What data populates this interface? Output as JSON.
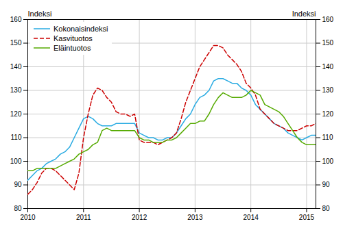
{
  "chart_data": {
    "type": "line",
    "ylabel": "Indeksi",
    "y2label": "Indeksi",
    "x": [
      2010,
      2010.083333,
      2010.166667,
      2010.25,
      2010.333333,
      2010.416667,
      2010.5,
      2010.583333,
      2010.666667,
      2010.75,
      2010.833333,
      2010.916667,
      2011,
      2011.083333,
      2011.166667,
      2011.25,
      2011.333333,
      2011.416667,
      2011.5,
      2011.583333,
      2011.666667,
      2011.75,
      2011.833333,
      2011.916667,
      2012,
      2012.083333,
      2012.166667,
      2012.25,
      2012.333333,
      2012.416667,
      2012.5,
      2012.583333,
      2012.666667,
      2012.75,
      2012.833333,
      2012.916667,
      2013,
      2013.083333,
      2013.166667,
      2013.25,
      2013.333333,
      2013.416667,
      2013.5,
      2013.583333,
      2013.666667,
      2013.75,
      2013.833333,
      2013.916667,
      2014,
      2014.083333,
      2014.166667,
      2014.25,
      2014.333333,
      2014.416667,
      2014.5,
      2014.583333,
      2014.666667,
      2014.75,
      2014.833333,
      2014.916667,
      2015,
      2015.083333,
      2015.166667
    ],
    "xlim": [
      2010,
      2015.166667
    ],
    "xticks": [
      2010,
      2011,
      2012,
      2013,
      2014,
      2015
    ],
    "ylim": [
      80,
      160
    ],
    "yticks": [
      80,
      90,
      100,
      110,
      120,
      130,
      140,
      150,
      160
    ],
    "y2lim": [
      80,
      160
    ],
    "y2ticks": [
      80,
      90,
      100,
      110,
      120,
      130,
      140,
      150,
      160
    ],
    "grid": true,
    "legend": "upper left",
    "series": [
      {
        "name": "Kokonaisindeksi",
        "color": "#29ABE2",
        "line_style": "solid",
        "values": [
          92,
          94,
          96,
          97,
          99,
          100,
          101,
          103,
          104,
          106,
          110,
          114,
          118,
          119,
          118,
          116,
          115,
          115,
          115,
          116,
          116,
          116,
          116,
          116,
          112,
          111,
          110,
          110,
          109,
          109,
          110,
          110,
          112,
          115,
          118,
          120,
          124,
          127,
          128,
          130,
          134,
          135,
          135,
          134,
          133,
          133,
          131,
          130,
          128,
          124,
          122,
          120,
          118,
          116,
          115,
          114,
          112,
          111,
          110,
          109,
          110,
          111,
          111
        ]
      },
      {
        "name": "Kasvituotos",
        "color": "#CC0000",
        "line_style": "dashed",
        "values": [
          86,
          88,
          91,
          95,
          97,
          97,
          96,
          94,
          92,
          90,
          88,
          95,
          110,
          120,
          128,
          131,
          130,
          127,
          125,
          121,
          120,
          120,
          119,
          120,
          109,
          108,
          108,
          108,
          107,
          108,
          109,
          110,
          112,
          118,
          125,
          130,
          135,
          140,
          143,
          146,
          149,
          149,
          148,
          145,
          143,
          141,
          138,
          133,
          131,
          128,
          122,
          120,
          118,
          116,
          115,
          114,
          113,
          113,
          113,
          114,
          115,
          115,
          116
        ]
      },
      {
        "name": "Eläintuotos",
        "color": "#55AA00",
        "line_style": "solid",
        "values": [
          96,
          96,
          97,
          97,
          97,
          97,
          97,
          98,
          99,
          100,
          101,
          103,
          104,
          105,
          107,
          108,
          113,
          114,
          113,
          113,
          113,
          113,
          113,
          113,
          110,
          109,
          109,
          108,
          108,
          108,
          109,
          109,
          110,
          112,
          114,
          116,
          116,
          117,
          117,
          120,
          124,
          127,
          129,
          128,
          127,
          127,
          127,
          128,
          130,
          129,
          128,
          124,
          123,
          122,
          121,
          119,
          116,
          113,
          110,
          108,
          107,
          107,
          107
        ]
      }
    ]
  }
}
